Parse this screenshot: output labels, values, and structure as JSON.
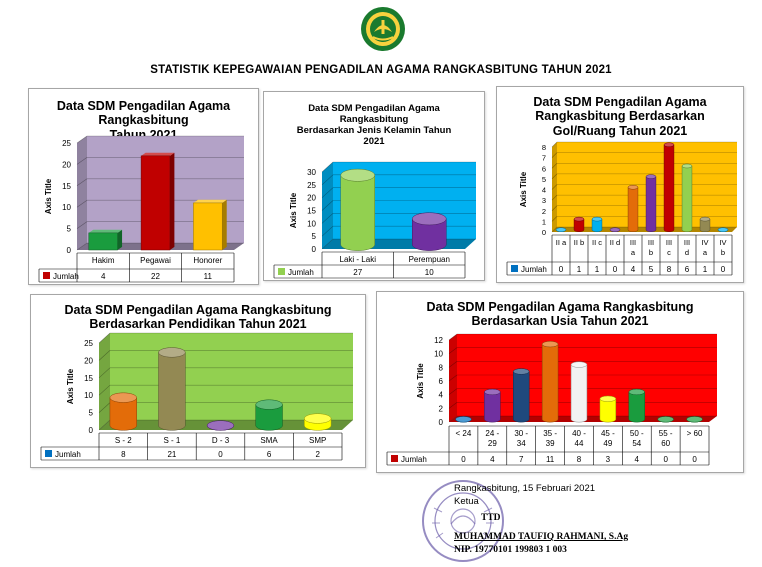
{
  "colors": {
    "red": "#c00000",
    "green": "#1a9c3e",
    "yellow": "#ffc000",
    "blue": "#0070c0",
    "purple": "#7030a0",
    "olive": "#938953",
    "orange": "#e36c09",
    "light_green": "#92d050",
    "white": "#f2f2f2",
    "navy": "#1f497d"
  },
  "page": {
    "title": "STATISTIK KEPEGAWAIAN PENGADILAN AGAMA RANGKASBITUNG TAHUN 2021",
    "logo_icon": "court-emblem-icon"
  },
  "axis_title": "Axis Title",
  "legend_label": "Jumlah",
  "charts": [
    {
      "id": "c1",
      "title_lines": [
        "Data SDM Pengadilan Agama",
        "Rangkasbitung",
        "Tahun  2021"
      ]
    },
    {
      "id": "c2",
      "title_lines": [
        "Data SDM Pengadilan Agama",
        "Rangkasbitung",
        "Berdasarkan Jenis Kelamin Tahun",
        "2021"
      ]
    },
    {
      "id": "c3",
      "title_lines": [
        "Data SDM Pengadilan Agama",
        "Rangkasbitung Berdasarkan",
        "Gol/Ruang Tahun 2021"
      ]
    },
    {
      "id": "c4",
      "title_lines": [
        "Data SDM Pengadilan Agama Rangkasbitung",
        "Berdasarkan Pendidikan Tahun 2021"
      ]
    },
    {
      "id": "c5",
      "title_lines": [
        "Data SDM Pengadilan Agama Rangkasbitung",
        "Berdasarkan Usia Tahun 2021"
      ]
    }
  ],
  "chart_data": [
    {
      "type": "bar",
      "title": "Data SDM Pengadilan Agama Rangkasbitung Tahun  2021",
      "ylabel": "Axis Title",
      "ylim": [
        0,
        25
      ],
      "yticks": [
        0,
        5,
        10,
        15,
        20,
        25
      ],
      "wall": "#b3a2c7",
      "categories": [
        "Hakim",
        "Pegawai",
        "Honorer"
      ],
      "category_labels": [
        [
          "Hakim"
        ],
        [
          "Pegawai"
        ],
        [
          "Honorer"
        ]
      ],
      "series": [
        {
          "name": "Jumlah",
          "values": [
            4,
            22,
            11
          ]
        }
      ],
      "bar_colors": [
        "#1a9c3e",
        "#c00000",
        "#ffc000"
      ],
      "legend_color": "#c00000",
      "shape": "box"
    },
    {
      "type": "bar",
      "title": "Data SDM Pengadilan Agama Rangkasbitung Berdasarkan Jenis Kelamin Tahun 2021",
      "ylabel": "Axis Title",
      "ylim": [
        0,
        30
      ],
      "yticks": [
        0,
        5,
        10,
        15,
        20,
        25,
        30
      ],
      "wall": "#00b0f0",
      "categories": [
        "Laki - Laki",
        "Perempuan"
      ],
      "category_labels": [
        [
          "Laki - Laki"
        ],
        [
          "Perempuan"
        ]
      ],
      "series": [
        {
          "name": "Jumlah",
          "values": [
            27,
            10
          ]
        }
      ],
      "bar_colors": [
        "#92d050",
        "#7030a0"
      ],
      "legend_color": "#92d050",
      "shape": "cyl"
    },
    {
      "type": "bar",
      "title": "Data SDM Pengadilan Agama Rangkasbitung Berdasarkan Gol/Ruang Tahun 2021",
      "ylabel": "Axis Title",
      "ylim": [
        0,
        8
      ],
      "yticks": [
        0,
        1,
        2,
        3,
        4,
        5,
        6,
        7,
        8
      ],
      "wall": "#ffc000",
      "categories": [
        "II a",
        "II b",
        "II c",
        "II d",
        "III a",
        "III b",
        "III c",
        "III d",
        "IV a",
        "IV b"
      ],
      "category_labels": [
        [
          "II a"
        ],
        [
          "II b"
        ],
        [
          "II c"
        ],
        [
          "II d"
        ],
        [
          "III",
          "a"
        ],
        [
          "III",
          "b"
        ],
        [
          "III",
          "c"
        ],
        [
          "III",
          "d"
        ],
        [
          "IV",
          "a"
        ],
        [
          "IV",
          "b"
        ]
      ],
      "series": [
        {
          "name": "Jumlah",
          "values": [
            0,
            1,
            1,
            0,
            4,
            5,
            8,
            6,
            1,
            0
          ]
        }
      ],
      "bar_colors": [
        "#00b0f0",
        "#c00000",
        "#00b0f0",
        "#7030a0",
        "#e36c09",
        "#7030a0",
        "#c00000",
        "#92d050",
        "#938953",
        "#00b0f0"
      ],
      "legend_color": "#0070c0",
      "shape": "cyl"
    },
    {
      "type": "bar",
      "title": "Data SDM Pengadilan Agama Rangkasbitung Berdasarkan Pendidikan Tahun 2021",
      "ylabel": "Axis Title",
      "ylim": [
        0,
        25
      ],
      "yticks": [
        0,
        5,
        10,
        15,
        20,
        25
      ],
      "wall": "#92d050",
      "categories": [
        "S - 2",
        "S - 1",
        "D - 3",
        "SMA",
        "SMP"
      ],
      "category_labels": [
        [
          "S - 2"
        ],
        [
          "S - 1"
        ],
        [
          "D - 3"
        ],
        [
          "SMA"
        ],
        [
          "SMP"
        ]
      ],
      "series": [
        {
          "name": "Jumlah",
          "values": [
            8,
            21,
            0,
            6,
            2
          ]
        }
      ],
      "bar_colors": [
        "#e36c09",
        "#938953",
        "#7030a0",
        "#1a9c3e",
        "#ffff00"
      ],
      "legend_color": "#0070c0",
      "shape": "cyl"
    },
    {
      "type": "bar",
      "title": "Data SDM Pengadilan Agama Rangkasbitung Berdasarkan Usia Tahun 2021",
      "ylabel": "Axis Title",
      "ylim": [
        0,
        12
      ],
      "yticks": [
        0,
        2,
        4,
        6,
        8,
        10,
        12
      ],
      "wall": "#ff0000",
      "categories": [
        "< 24",
        "24 - 29",
        "30 - 34",
        "35 - 39",
        "40 - 44",
        "45 - 49",
        "50 - 54",
        "55 - 60",
        "> 60"
      ],
      "category_labels": [
        [
          "< 24"
        ],
        [
          "24 -",
          "29"
        ],
        [
          "30 -",
          "34"
        ],
        [
          "35 -",
          "39"
        ],
        [
          "40 -",
          "44"
        ],
        [
          "45 -",
          "49"
        ],
        [
          "50 -",
          "54"
        ],
        [
          "55 -",
          "60"
        ],
        [
          "> 60"
        ]
      ],
      "series": [
        {
          "name": "Jumlah",
          "values": [
            0,
            4,
            7,
            11,
            8,
            3,
            4,
            0,
            0
          ]
        }
      ],
      "bar_colors": [
        "#0070c0",
        "#7030a0",
        "#1f497d",
        "#e36c09",
        "#f2f2f2",
        "#ffff00",
        "#1a9c3e",
        "#1a9c3e",
        "#1a9c3e"
      ],
      "legend_color": "#c00000",
      "shape": "cyl"
    }
  ],
  "signature": {
    "place_date": "Rangkasbitung, 15 Februari 2021",
    "role": "Ketua",
    "ttd": "TTD",
    "name": "MUHAMMAD TAUFIQ  RAHMANI, S.Ag",
    "nip": "NIP. 19770101 199803 1 003",
    "stamp_icon": "official-stamp-icon"
  }
}
